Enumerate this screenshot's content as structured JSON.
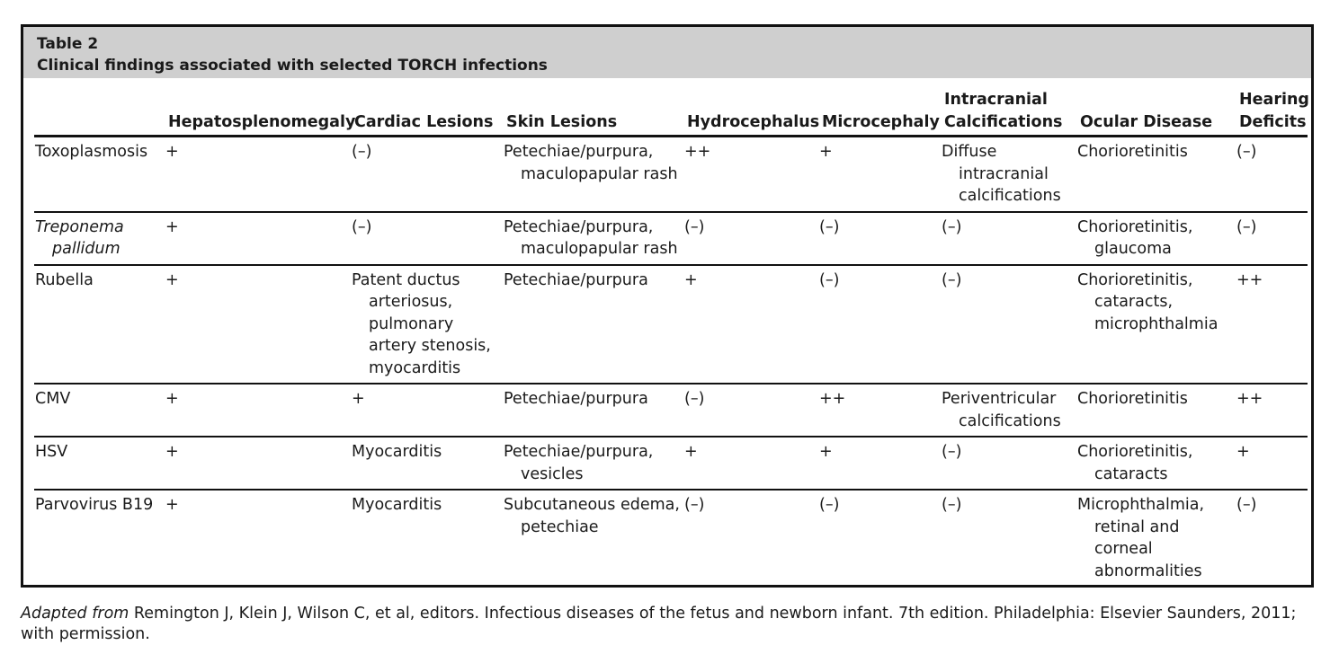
{
  "table": {
    "label": "Table 2",
    "title": "Clinical findings associated with selected TORCH infections",
    "columns": [
      "",
      "Hepatosplenomegaly",
      "Cardiac Lesions",
      "Skin Lesions",
      "Hydrocephalus",
      "Microcephaly",
      "Intracranial Calcifications",
      "Ocular Disease",
      "Hearing Deficits"
    ],
    "rows": [
      {
        "infection": "Toxoplasmosis",
        "italic": false,
        "cells": [
          "+",
          "(–)",
          "Petechiae/purpura, maculopapular rash",
          "++",
          "+",
          "Diffuse intracranial calcifications",
          "Chorioretinitis",
          "(–)"
        ]
      },
      {
        "infection": "Treponema pallidum",
        "italic": true,
        "cells": [
          "+",
          "(–)",
          "Petechiae/purpura, maculopapular rash",
          "(–)",
          "(–)",
          "(–)",
          "Chorioretinitis, glaucoma",
          "(–)"
        ]
      },
      {
        "infection": "Rubella",
        "italic": false,
        "cells": [
          "+",
          "Patent ductus arteriosus, pulmonary artery stenosis, myocarditis",
          "Petechiae/purpura",
          "+",
          "(–)",
          "(–)",
          "Chorioretinitis, cataracts, microphthalmia",
          "++"
        ]
      },
      {
        "infection": "CMV",
        "italic": false,
        "cells": [
          "+",
          "+",
          "Petechiae/purpura",
          "(–)",
          "++",
          "Periventricular calcifications",
          "Chorioretinitis",
          "++"
        ]
      },
      {
        "infection": "HSV",
        "italic": false,
        "cells": [
          "+",
          "Myocarditis",
          "Petechiae/purpura, vesicles",
          "+",
          "+",
          "(–)",
          "Chorioretinitis, cataracts",
          "+"
        ]
      },
      {
        "infection": "Parvovirus B19",
        "italic": false,
        "cells": [
          "+",
          "Myocarditis",
          "Subcutaneous edema, petechiae",
          "(–)",
          "(–)",
          "(–)",
          "Microphthalmia, retinal and corneal abnormalities",
          "(–)"
        ]
      }
    ]
  },
  "footnote": {
    "lead": "Adapted from",
    "text": " Remington J, Klein J, Wilson C, et al, editors. Infectious diseases of the fetus and newborn infant. 7th edition. Philadelphia: Elsevier Saunders, 2011; with permission."
  }
}
